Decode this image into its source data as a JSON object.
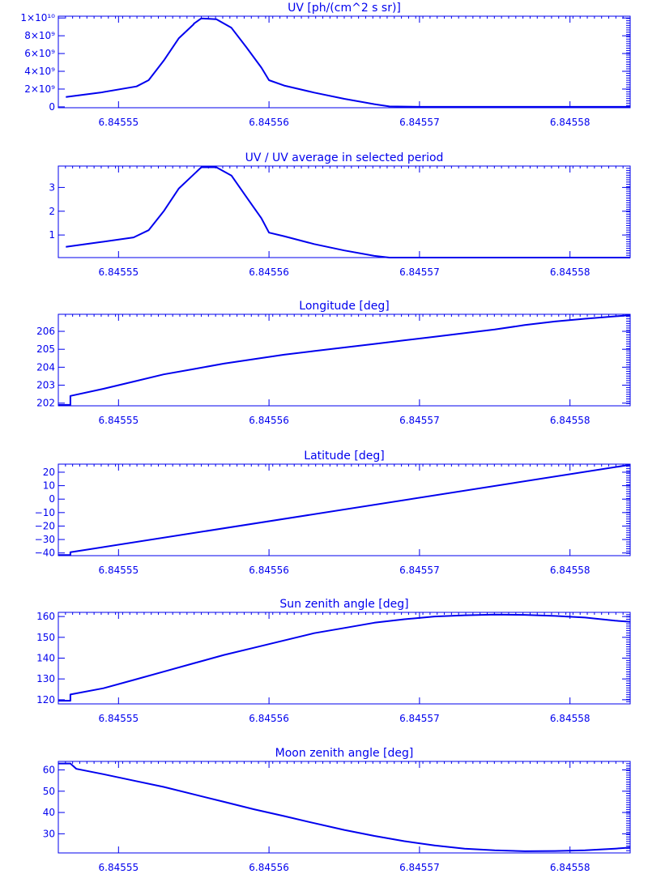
{
  "theme": {
    "color": "#0000ee"
  },
  "chart_data": [
    {
      "type": "line",
      "title": "UV [ph/(cm^2 s sr)]",
      "xlim": [
        6.845546,
        6.845584
      ],
      "ylim": [
        -100000000.0,
        10200000000.0
      ],
      "x_ticks": [
        "6.84555",
        "6.84556",
        "6.84557",
        "6.84558"
      ],
      "x_tick_values": [
        6.84555,
        6.84556,
        6.84557,
        6.84558
      ],
      "y_ticks": [
        {
          "value": 0,
          "label": "0"
        },
        {
          "value": 2000000000.0,
          "label": "2×10⁹"
        },
        {
          "value": 4000000000.0,
          "label": "4×10⁹"
        },
        {
          "value": 6000000000.0,
          "label": "6×10⁹"
        },
        {
          "value": 8000000000.0,
          "label": "8×10⁹"
        },
        {
          "value": 10000000000.0,
          "label": "1×10¹⁰"
        }
      ],
      "points": [
        [
          6.8455465,
          1100000000.0
        ],
        [
          6.8455488,
          1600000000.0
        ],
        [
          6.8455512,
          2300000000.0
        ],
        [
          6.845552,
          3000000000.0
        ],
        [
          6.845553,
          5200000000.0
        ],
        [
          6.845554,
          7700000000.0
        ],
        [
          6.845555,
          9300000000.0
        ],
        [
          6.845555,
          9350000000.0
        ],
        [
          6.8455555,
          9950000000.0
        ],
        [
          6.8455565,
          9850000000.0
        ],
        [
          6.8455575,
          8900000000.0
        ],
        [
          6.8455585,
          6700000000.0
        ],
        [
          6.8455595,
          4400000000.0
        ],
        [
          6.84556,
          3000000000.0
        ],
        [
          6.845561,
          2400000000.0
        ],
        [
          6.845563,
          1600000000.0
        ],
        [
          6.845565,
          900000000.0
        ],
        [
          6.845567,
          300000000.0
        ],
        [
          6.845568,
          50000000.0
        ],
        [
          6.84557,
          0
        ],
        [
          6.84558,
          0
        ],
        [
          6.845584,
          0
        ]
      ]
    },
    {
      "type": "line",
      "title": "UV / UV average in selected period",
      "xlim": [
        6.845546,
        6.845584
      ],
      "ylim": [
        0.05,
        3.9
      ],
      "x_ticks": [
        "6.84555",
        "6.84556",
        "6.84557",
        "6.84558"
      ],
      "x_tick_values": [
        6.84555,
        6.84556,
        6.84557,
        6.84558
      ],
      "y_ticks": [
        {
          "value": 1,
          "label": "1"
        },
        {
          "value": 2,
          "label": "2"
        },
        {
          "value": 3,
          "label": "3"
        }
      ],
      "points": [
        [
          6.8455465,
          0.5
        ],
        [
          6.8455488,
          0.7
        ],
        [
          6.845551,
          0.9
        ],
        [
          6.845552,
          1.2
        ],
        [
          6.845553,
          2.0
        ],
        [
          6.845554,
          2.95
        ],
        [
          6.845555,
          3.55
        ],
        [
          6.8455555,
          3.85
        ],
        [
          6.8455565,
          3.85
        ],
        [
          6.8455575,
          3.5
        ],
        [
          6.8455585,
          2.6
        ],
        [
          6.8455595,
          1.7
        ],
        [
          6.84556,
          1.1
        ],
        [
          6.845561,
          0.95
        ],
        [
          6.845563,
          0.62
        ],
        [
          6.845565,
          0.35
        ],
        [
          6.845567,
          0.12
        ],
        [
          6.845568,
          0.05
        ],
        [
          6.84557,
          0.05
        ],
        [
          6.845584,
          0.05
        ]
      ]
    },
    {
      "type": "line",
      "title": "Longitude [deg]",
      "xlim": [
        6.845546,
        6.845584
      ],
      "ylim": [
        201.85,
        206.95
      ],
      "x_ticks": [
        "6.84555",
        "6.84556",
        "6.84557",
        "6.84558"
      ],
      "x_tick_values": [
        6.84555,
        6.84556,
        6.84557,
        6.84558
      ],
      "y_ticks": [
        {
          "value": 202,
          "label": "202"
        },
        {
          "value": 203,
          "label": "203"
        },
        {
          "value": 204,
          "label": "204"
        },
        {
          "value": 205,
          "label": "205"
        },
        {
          "value": 206,
          "label": "206"
        }
      ],
      "points": [
        [
          6.845546,
          201.9
        ],
        [
          6.8455468,
          201.9
        ],
        [
          6.8455468,
          202.4
        ],
        [
          6.845549,
          202.8
        ],
        [
          6.845551,
          203.2
        ],
        [
          6.845553,
          203.6
        ],
        [
          6.845555,
          203.9
        ],
        [
          6.845557,
          204.2
        ],
        [
          6.845559,
          204.45
        ],
        [
          6.845561,
          204.7
        ],
        [
          6.845563,
          204.9
        ],
        [
          6.845565,
          205.1
        ],
        [
          6.845567,
          205.3
        ],
        [
          6.845569,
          205.5
        ],
        [
          6.845571,
          205.7
        ],
        [
          6.845573,
          205.9
        ],
        [
          6.845575,
          206.1
        ],
        [
          6.845577,
          206.35
        ],
        [
          6.845579,
          206.55
        ],
        [
          6.845581,
          206.7
        ],
        [
          6.845584,
          206.9
        ]
      ]
    },
    {
      "type": "line",
      "title": "Latitude [deg]",
      "xlim": [
        6.845546,
        6.845584
      ],
      "ylim": [
        -42,
        26
      ],
      "x_ticks": [
        "6.84555",
        "6.84556",
        "6.84557",
        "6.84558"
      ],
      "x_tick_values": [
        6.84555,
        6.84556,
        6.84557,
        6.84558
      ],
      "y_ticks": [
        {
          "value": -40,
          "label": "−40"
        },
        {
          "value": -30,
          "label": "−30"
        },
        {
          "value": -20,
          "label": "−20"
        },
        {
          "value": -10,
          "label": "−10"
        },
        {
          "value": 0,
          "label": "0"
        },
        {
          "value": 10,
          "label": "10"
        },
        {
          "value": 20,
          "label": "20"
        }
      ],
      "points": [
        [
          6.845546,
          -41.5
        ],
        [
          6.8455468,
          -41.5
        ],
        [
          6.8455468,
          -39.5
        ],
        [
          6.845584,
          25.5
        ]
      ]
    },
    {
      "type": "line",
      "title": "Sun zenith angle [deg]",
      "xlim": [
        6.845546,
        6.845584
      ],
      "ylim": [
        118,
        162
      ],
      "x_ticks": [
        "6.84555",
        "6.84556",
        "6.84557",
        "6.84558"
      ],
      "x_tick_values": [
        6.84555,
        6.84556,
        6.84557,
        6.84558
      ],
      "y_ticks": [
        {
          "value": 120,
          "label": "120"
        },
        {
          "value": 130,
          "label": "130"
        },
        {
          "value": 140,
          "label": "140"
        },
        {
          "value": 150,
          "label": "150"
        },
        {
          "value": 160,
          "label": "160"
        }
      ],
      "points": [
        [
          6.845546,
          119.5
        ],
        [
          6.8455468,
          119.5
        ],
        [
          6.8455468,
          122.5
        ],
        [
          6.845549,
          125.5
        ],
        [
          6.845551,
          129.5
        ],
        [
          6.845553,
          133.5
        ],
        [
          6.845555,
          137.5
        ],
        [
          6.845557,
          141.5
        ],
        [
          6.845559,
          145.0
        ],
        [
          6.845561,
          148.5
        ],
        [
          6.845563,
          152.0
        ],
        [
          6.845565,
          154.5
        ],
        [
          6.845567,
          157.0
        ],
        [
          6.845569,
          158.7
        ],
        [
          6.845571,
          160.0
        ],
        [
          6.845573,
          160.6
        ],
        [
          6.845575,
          160.9
        ],
        [
          6.845577,
          160.8
        ],
        [
          6.845579,
          160.3
        ],
        [
          6.845581,
          159.5
        ],
        [
          6.845583,
          158.0
        ],
        [
          6.845584,
          157.5
        ]
      ]
    },
    {
      "type": "line",
      "title": "Moon zenith angle [deg]",
      "xlim": [
        6.845546,
        6.845584
      ],
      "ylim": [
        21,
        64
      ],
      "x_ticks": [
        "6.84555",
        "6.84556",
        "6.84557",
        "6.84558"
      ],
      "x_tick_values": [
        6.84555,
        6.84556,
        6.84557,
        6.84558
      ],
      "y_ticks": [
        {
          "value": 30,
          "label": "30"
        },
        {
          "value": 40,
          "label": "40"
        },
        {
          "value": 50,
          "label": "50"
        },
        {
          "value": 60,
          "label": "60"
        }
      ],
      "points": [
        [
          6.845546,
          63.0
        ],
        [
          6.8455468,
          63.0
        ],
        [
          6.8455472,
          60.5
        ],
        [
          6.845549,
          58.0
        ],
        [
          6.845551,
          55.0
        ],
        [
          6.845553,
          52.0
        ],
        [
          6.845555,
          48.5
        ],
        [
          6.845557,
          45.0
        ],
        [
          6.845559,
          41.5
        ],
        [
          6.845561,
          38.3
        ],
        [
          6.845563,
          35.0
        ],
        [
          6.845565,
          31.8
        ],
        [
          6.845567,
          29.0
        ],
        [
          6.845569,
          26.5
        ],
        [
          6.845571,
          24.5
        ],
        [
          6.845573,
          23.0
        ],
        [
          6.845575,
          22.2
        ],
        [
          6.845577,
          21.8
        ],
        [
          6.845579,
          21.9
        ],
        [
          6.845581,
          22.2
        ],
        [
          6.845583,
          23.0
        ],
        [
          6.845584,
          23.5
        ]
      ]
    }
  ]
}
